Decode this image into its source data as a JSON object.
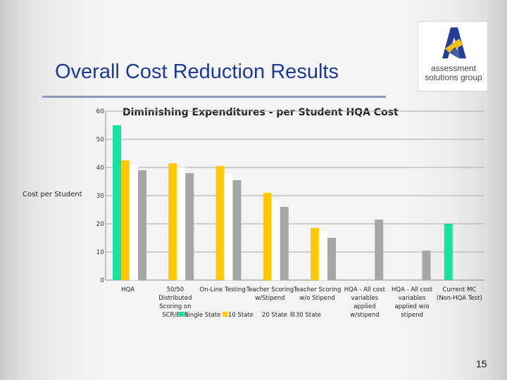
{
  "slide": {
    "title": "Overall Cost Reduction Results",
    "page_number": "15",
    "logo": {
      "name": "assessment solutions group",
      "line1": "assessment",
      "line2": "solutions group"
    }
  },
  "colors": {
    "title": "#1f3a93",
    "single_state": "#1adfa1",
    "ten_state": "#ffc90a",
    "twenty_state": "#ffffff",
    "thirty_state": "#a6a6a6"
  },
  "chart_data": {
    "type": "bar",
    "title": "Diminishing Expenditures - per Student HQA Cost",
    "xlabel": "",
    "ylabel": "Cost per Student",
    "ylim": [
      0,
      60
    ],
    "yticks": [
      0,
      10,
      20,
      30,
      40,
      50,
      60
    ],
    "grid": true,
    "legend_position": "bottom",
    "categories": [
      [
        "HQA"
      ],
      [
        "50/50",
        "Distributed",
        "Scoring on",
        "SCR/ECR"
      ],
      [
        "On-Line Testing"
      ],
      [
        "Teacher Scoring",
        "w/Stipend"
      ],
      [
        "Teacher Scoring",
        "w/o Stipend"
      ],
      [
        "HQA - All cost",
        "variables",
        "applied",
        "w/stipend"
      ],
      [
        "HQA - All cost",
        "variables",
        "applied  w/o",
        "stipend"
      ],
      [
        "Current MC",
        "(Non-HQA Test)"
      ]
    ],
    "series": [
      {
        "name": "Single State",
        "color": "#1adfa1",
        "values": [
          55,
          null,
          null,
          null,
          null,
          null,
          null,
          20
        ]
      },
      {
        "name": "10 State",
        "color": "#ffc90a",
        "values": [
          42.5,
          41.5,
          40.5,
          31,
          18.5,
          null,
          null,
          null
        ]
      },
      {
        "name": "20 State",
        "color": "#ffffff",
        "values": [
          41,
          40,
          38,
          28.5,
          17,
          null,
          null,
          null
        ]
      },
      {
        "name": "30 State",
        "color": "#a6a6a6",
        "values": [
          39,
          38,
          35.5,
          26,
          15,
          21.5,
          10.5,
          null
        ]
      }
    ]
  }
}
